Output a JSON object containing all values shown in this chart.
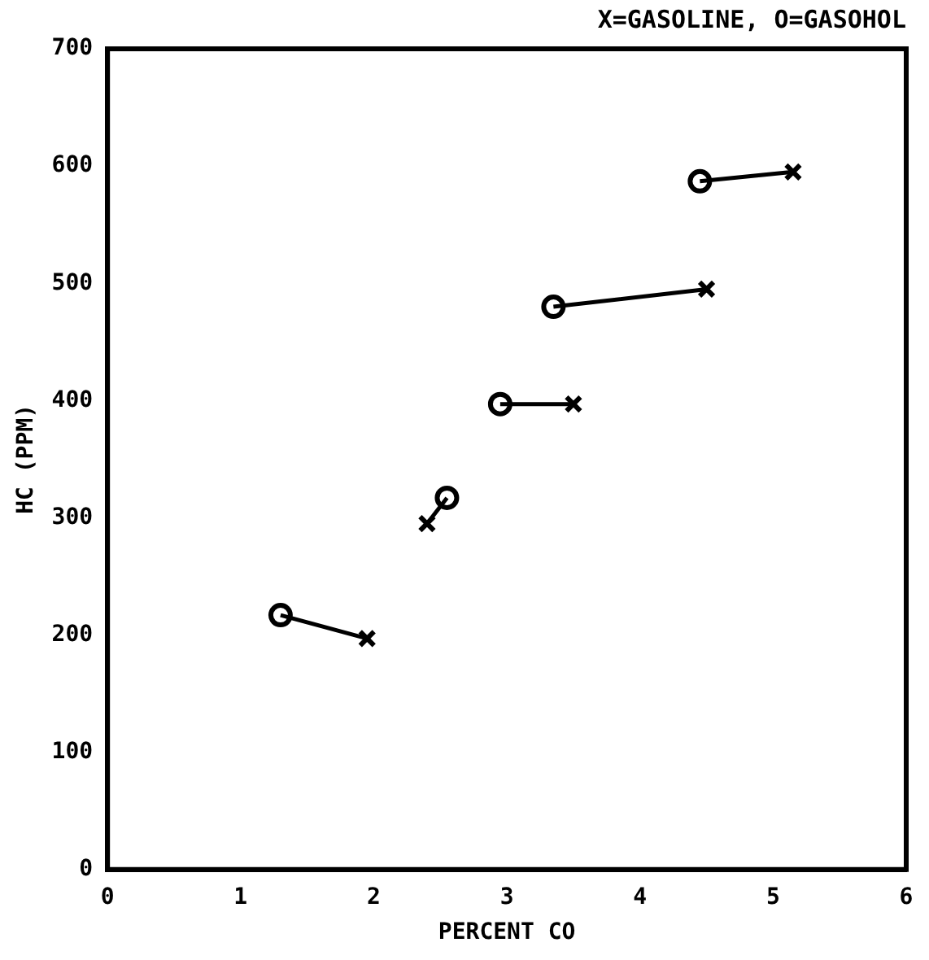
{
  "chart_data": {
    "type": "scatter",
    "title": "X=GASOLINE, O=GASOHOL",
    "xlabel": "PERCENT CO",
    "ylabel": "HC (PPM)",
    "xlim": [
      0,
      6
    ],
    "xticks": [
      0,
      1,
      2,
      3,
      4,
      5,
      6
    ],
    "ylim": [
      0,
      700
    ],
    "yticks": [
      0,
      100,
      200,
      300,
      400,
      500,
      600,
      700
    ],
    "grid": false,
    "legend": false,
    "series": [
      {
        "type": "line",
        "marker": "none",
        "color": "#000000",
        "x": [
          1.3,
          1.95,
          null,
          2.4,
          2.55,
          null,
          2.95,
          3.5,
          null,
          3.35,
          4.5,
          null,
          4.45,
          5.15
        ],
        "values": [
          217,
          197,
          null,
          295,
          317,
          null,
          397,
          397,
          null,
          480,
          495,
          null,
          587,
          595
        ]
      },
      {
        "marker": "cross",
        "color": "#000000",
        "x": [
          1.95,
          2.4,
          3.5,
          4.5,
          5.15
        ],
        "values": [
          197,
          295,
          397,
          495,
          595
        ]
      },
      {
        "marker": "circle",
        "color": "#000000",
        "x": [
          1.3,
          2.55,
          2.95,
          3.35,
          4.45
        ],
        "values": [
          217,
          317,
          397,
          480,
          587
        ]
      }
    ]
  }
}
